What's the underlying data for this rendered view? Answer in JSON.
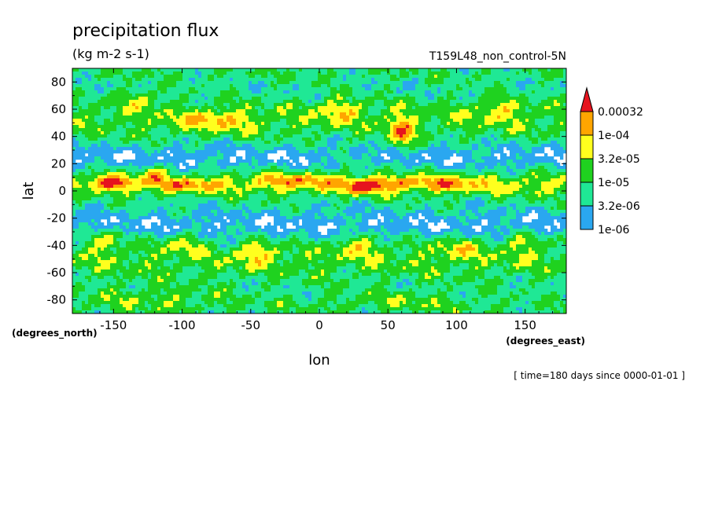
{
  "chart_data": {
    "type": "heatmap",
    "title": "precipitation flux",
    "subtitle": "(kg m-2 s-1)",
    "run_label": "T159L48_non_control-5N",
    "xlabel": "lon",
    "ylabel": "lat",
    "x_units": "(degrees_east)",
    "y_units": "(degrees_north)",
    "time_label": "[ time=180 days since 0000-01-01 ]",
    "xlim": [
      -180,
      180
    ],
    "ylim": [
      -90,
      90
    ],
    "x_ticks": [
      -150,
      -100,
      -50,
      0,
      50,
      100,
      150
    ],
    "x_tick_labels": [
      "-150",
      "-100",
      "-50",
      "0",
      "50",
      "100",
      "150"
    ],
    "y_ticks": [
      80,
      60,
      40,
      20,
      0,
      -20,
      -40,
      -60,
      -80
    ],
    "y_tick_labels": [
      "80",
      "60",
      "40",
      "20",
      "0",
      "-20",
      "-40",
      "-60",
      "-80"
    ],
    "scale": "log",
    "colorbar": {
      "levels": [
        1e-06,
        3.2e-06,
        1e-05,
        3.2e-05,
        0.0001,
        0.00032
      ],
      "level_labels": [
        "1e-06",
        "3.2e-06",
        "1e-05",
        "3.2e-05",
        "1e-04",
        "0.00032"
      ],
      "colors": [
        "#ffffff",
        "#2aa7f0",
        "#1fe895",
        "#1fd21f",
        "#ffff1e",
        "#ffa500",
        "#e6141e"
      ],
      "extend": "max"
    },
    "grid": false
  }
}
